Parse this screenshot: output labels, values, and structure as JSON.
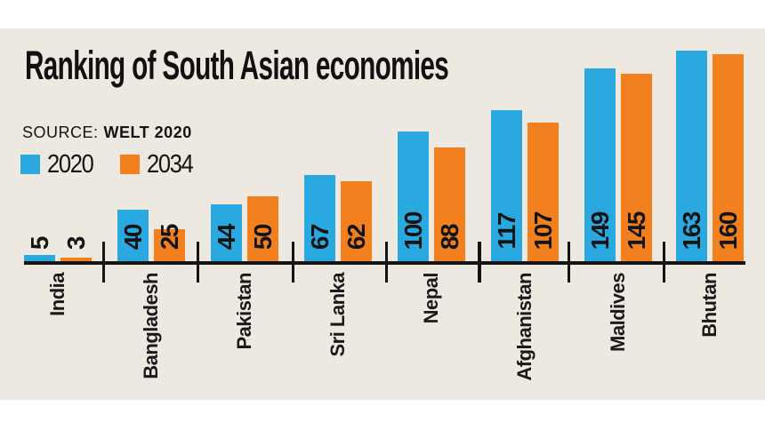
{
  "title": "Ranking of South Asian economies",
  "source": {
    "label": "SOURCE:",
    "value": "WELT 2020"
  },
  "legend": [
    {
      "label": "2020",
      "color": "#29A9E0"
    },
    {
      "label": "2034",
      "color": "#F2801E"
    }
  ],
  "colors": {
    "series_2020": "#29A9E0",
    "series_2034": "#F2801E",
    "panel_background": "#EDE9E1",
    "outer_background": "#FFFFFF",
    "ink": "#141414"
  },
  "chart_data": {
    "type": "bar",
    "title": "Ranking of South Asian economies",
    "source": "WELT 2020",
    "orientation": "vertical",
    "grid": false,
    "axes": "baseline-only",
    "value_labels": "rotated, at bar base",
    "category_labels": "rotated, below baseline",
    "legend_position": "top-left",
    "ylim": [
      0,
      170
    ],
    "categories": [
      "India",
      "Bangladesh",
      "Pakistan",
      "Sri Lanka",
      "Nepal",
      "Afghanistan",
      "Maldives",
      "Bhutan"
    ],
    "series": [
      {
        "name": "2020",
        "color": "#29A9E0",
        "values": [
          5,
          40,
          44,
          67,
          100,
          117,
          149,
          163
        ]
      },
      {
        "name": "2034",
        "color": "#F2801E",
        "values": [
          3,
          25,
          50,
          62,
          88,
          107,
          145,
          160
        ]
      }
    ]
  }
}
